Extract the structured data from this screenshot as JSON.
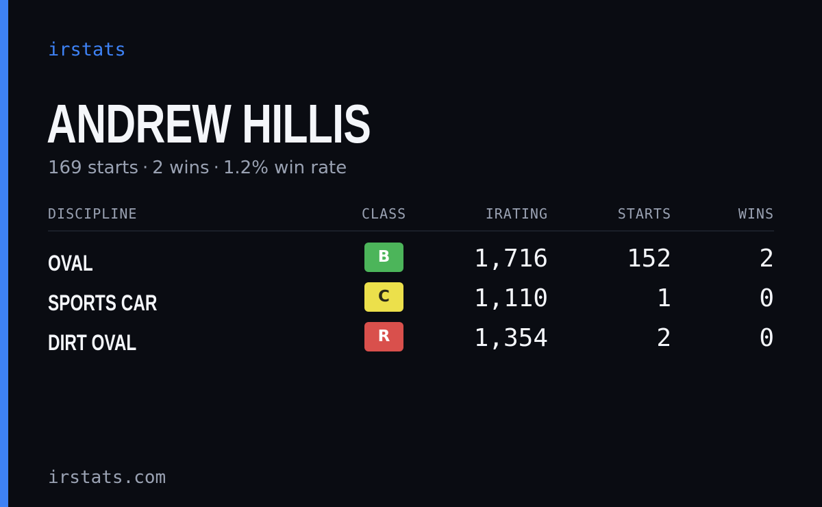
{
  "brand": "irstats",
  "driver": {
    "name": "ANDREW HILLIS",
    "starts": "169 starts",
    "wins": "2 wins",
    "win_rate": "1.2% win rate",
    "separator": "·"
  },
  "table": {
    "headers": {
      "discipline": "DISCIPLINE",
      "class": "CLASS",
      "irating": "IRATING",
      "starts": "STARTS",
      "wins": "WINS"
    },
    "rows": [
      {
        "discipline": "OVAL",
        "class": "B",
        "irating": "1,716",
        "starts": "152",
        "wins": "2"
      },
      {
        "discipline": "SPORTS CAR",
        "class": "C",
        "irating": "1,110",
        "starts": "1",
        "wins": "0"
      },
      {
        "discipline": "DIRT OVAL",
        "class": "R",
        "irating": "1,354",
        "starts": "2",
        "wins": "0"
      }
    ]
  },
  "class_colors": {
    "B": {
      "bg": "#4cb55a",
      "fg": "#ffffff"
    },
    "C": {
      "bg": "#ece04b",
      "fg": "#2a2a18"
    },
    "R": {
      "bg": "#d9504c",
      "fg": "#ffffff"
    }
  },
  "colors": {
    "accent": "#3e82f5",
    "background": "#0a0c12",
    "muted_text": "#9aa2b3"
  },
  "footer": "irstats.com"
}
